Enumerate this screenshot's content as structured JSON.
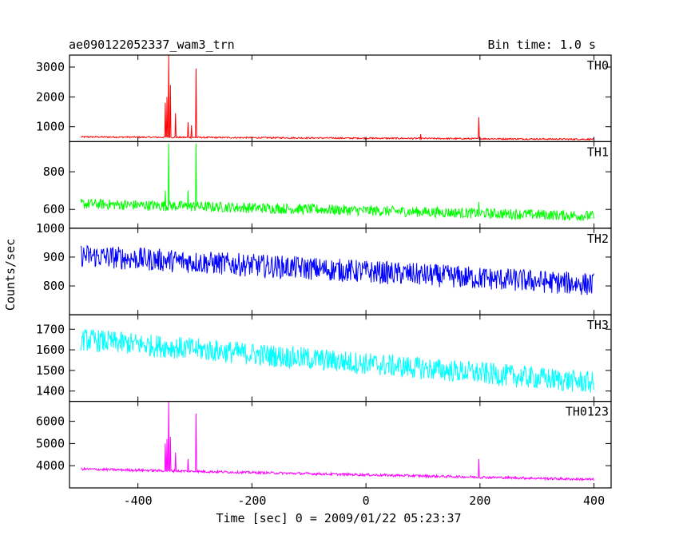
{
  "chart_data": {
    "type": "line",
    "title_left": "ae090122052337_wam3_trn",
    "title_right": "Bin time: 1.0 s",
    "xlabel": "Time [sec] 0 = 2009/01/22 05:23:37",
    "ylabel": "Counts/sec",
    "xlim": [
      -520,
      430
    ],
    "x_ticks": [
      -400,
      -200,
      0,
      200,
      400
    ],
    "x_data_range": [
      -500,
      400
    ],
    "panels": [
      {
        "name": "TH0",
        "color": "#ff0000",
        "ylim": [
          500,
          3400
        ],
        "y_ticks": [
          1000,
          2000,
          3000
        ],
        "baseline_start": 660,
        "baseline_end": 580,
        "noise": 25,
        "spikes": [
          {
            "x": -352,
            "y": 1800
          },
          {
            "x": -349,
            "y": 2000
          },
          {
            "x": -346,
            "y": 3500
          },
          {
            "x": -343,
            "y": 2400
          },
          {
            "x": -334,
            "y": 1450
          },
          {
            "x": -312,
            "y": 1150
          },
          {
            "x": -306,
            "y": 1050
          },
          {
            "x": -298,
            "y": 2950
          },
          {
            "x": 96,
            "y": 750
          },
          {
            "x": 198,
            "y": 1320
          }
        ]
      },
      {
        "name": "TH1",
        "color": "#00ff00",
        "ylim": [
          500,
          960
        ],
        "y_ticks": [
          600,
          800
        ],
        "baseline_start": 630,
        "baseline_end": 565,
        "noise": 28,
        "spikes": [
          {
            "x": -352,
            "y": 700
          },
          {
            "x": -346,
            "y": 950
          },
          {
            "x": -312,
            "y": 700
          },
          {
            "x": -298,
            "y": 950
          },
          {
            "x": 198,
            "y": 640
          }
        ]
      },
      {
        "name": "TH2",
        "color": "#0000ff",
        "ylim": [
          700,
          1000
        ],
        "y_ticks": [
          800,
          900,
          1000
        ],
        "baseline_start": 905,
        "baseline_end": 805,
        "noise": 40,
        "spikes": []
      },
      {
        "name": "TH3",
        "color": "#00ffff",
        "ylim": [
          1350,
          1770
        ],
        "y_ticks": [
          1400,
          1500,
          1600,
          1700
        ],
        "baseline_start": 1650,
        "baseline_end": 1440,
        "noise": 55,
        "spikes": []
      },
      {
        "name": "TH0123",
        "color": "#ff00ff",
        "ylim": [
          3000,
          6900
        ],
        "y_ticks": [
          4000,
          5000,
          6000
        ],
        "baseline_start": 3850,
        "baseline_end": 3380,
        "noise": 55,
        "spikes": [
          {
            "x": -352,
            "y": 5000
          },
          {
            "x": -349,
            "y": 5200
          },
          {
            "x": -346,
            "y": 6900
          },
          {
            "x": -343,
            "y": 5300
          },
          {
            "x": -334,
            "y": 4600
          },
          {
            "x": -312,
            "y": 4300
          },
          {
            "x": -298,
            "y": 6350
          },
          {
            "x": 198,
            "y": 4300
          }
        ]
      }
    ]
  }
}
